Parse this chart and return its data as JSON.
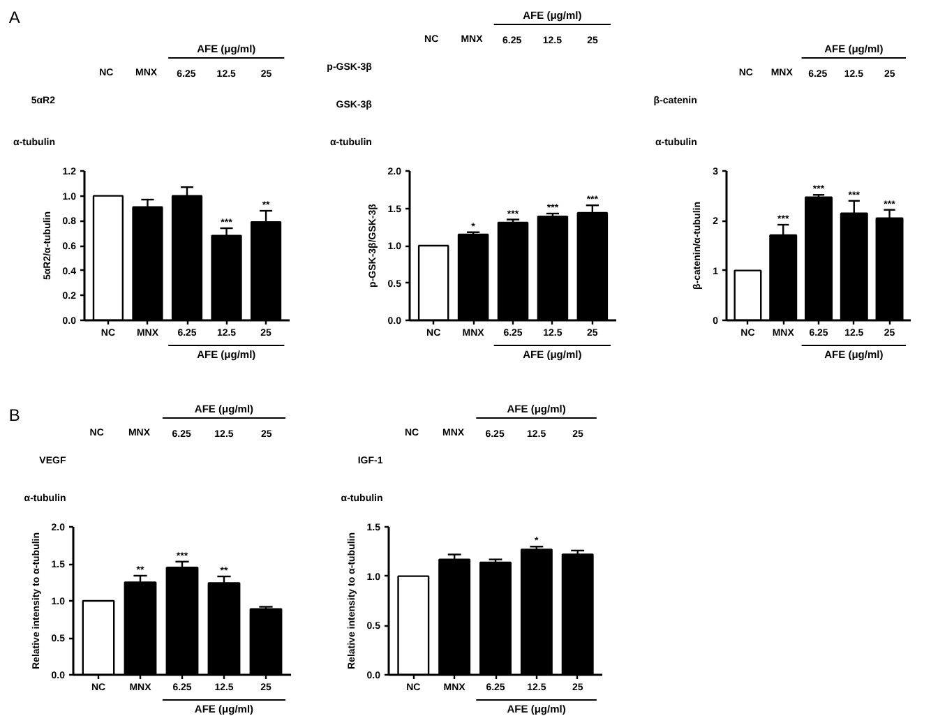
{
  "chart_data": [
    {
      "type": "bar",
      "title": "A",
      "categories": [
        "NC",
        "MNX",
        "6.25",
        "12.5",
        "25"
      ],
      "values": [
        1.0,
        0.91,
        1.0,
        0.68,
        0.79
      ],
      "errors": [
        null,
        0.06,
        0.07,
        0.06,
        0.09
      ],
      "colors": [
        "#ffffff",
        "#000000",
        "#000000",
        "#000000",
        "#000000"
      ],
      "ylabel": "5αR2/α-tubulin",
      "xlabel": "AFE (μg/ml)",
      "ylim": [
        0,
        1.2
      ],
      "yticks": [
        {
          "value": 0,
          "label": "0.0"
        },
        0.2,
        0.4,
        0.6,
        0.8,
        {
          "value": 1,
          "label": "1.0"
        },
        1.2
      ],
      "annotations": [
        "5αR2",
        "α-tubulin",
        {
          "text": "***",
          "x": "12.5",
          "y": 0.74
        },
        {
          "text": "**",
          "x": "25",
          "y": 0.88
        }
      ]
    },
    {
      "type": "bar",
      "categories": [
        "NC",
        "MNX",
        "6.25",
        "12.5",
        "25"
      ],
      "values": [
        1.0,
        1.15,
        1.31,
        1.39,
        1.44
      ],
      "errors": [
        null,
        0.03,
        0.04,
        0.04,
        0.1
      ],
      "colors": [
        "#ffffff",
        "#000000",
        "#000000",
        "#000000",
        "#000000"
      ],
      "ylabel": "p-GSK-3β/GSK-3β",
      "xlabel": "AFE (μg/ml)",
      "ylim": [
        0,
        2
      ],
      "yticks": [
        {
          "value": 0,
          "label": "0.0"
        },
        0.5,
        {
          "value": 1,
          "label": "1.0"
        },
        1.5,
        {
          "value": 2,
          "label": "2.0"
        }
      ],
      "annotations": [
        "p-GSK-3β",
        "GSK-3β",
        "α-tubulin",
        {
          "text": "*",
          "x": "MNX",
          "y": 1.18
        },
        {
          "text": "***",
          "x": "6.25",
          "y": 1.35
        },
        {
          "text": "***",
          "x": "12.5",
          "y": 1.43
        },
        {
          "text": "***",
          "x": "25",
          "y": 1.54
        }
      ]
    },
    {
      "type": "bar",
      "categories": [
        "NC",
        "MNX",
        "6.25",
        "12.5",
        "25"
      ],
      "values": [
        1.0,
        1.71,
        2.47,
        2.15,
        2.05
      ],
      "errors": [
        null,
        0.21,
        0.05,
        0.25,
        0.17
      ],
      "colors": [
        "#ffffff",
        "#000000",
        "#000000",
        "#000000",
        "#000000"
      ],
      "ylabel": "β-catenin/α-tubulin",
      "xlabel": "AFE (μg/ml)",
      "ylim": [
        0,
        3
      ],
      "yticks": [
        0,
        1,
        2,
        3
      ],
      "annotations": [
        "β-catenin",
        "α-tubulin",
        {
          "text": "***",
          "x": "MNX",
          "y": 1.92
        },
        {
          "text": "***",
          "x": "6.25",
          "y": 2.52
        },
        {
          "text": "***",
          "x": "12.5",
          "y": 2.4
        },
        {
          "text": "***",
          "x": "25",
          "y": 2.22
        }
      ]
    },
    {
      "type": "bar",
      "title": "B",
      "categories": [
        "NC",
        "MNX",
        "6.25",
        "12.5",
        "25"
      ],
      "values": [
        1.0,
        1.25,
        1.45,
        1.24,
        0.89
      ],
      "errors": [
        null,
        0.09,
        0.08,
        0.09,
        0.03
      ],
      "colors": [
        "#ffffff",
        "#000000",
        "#000000",
        "#000000",
        "#000000"
      ],
      "ylabel": "Relative intensity to α-tubulin",
      "xlabel": "AFE (μg/ml)",
      "ylim": [
        0,
        2
      ],
      "yticks": [
        {
          "value": 0,
          "label": "0.0"
        },
        0.5,
        {
          "value": 1,
          "label": "1.0"
        },
        1.5,
        {
          "value": 2,
          "label": "2.0"
        }
      ],
      "annotations": [
        "VEGF",
        "α-tubulin",
        {
          "text": "**",
          "x": "MNX",
          "y": 1.34
        },
        {
          "text": "***",
          "x": "6.25",
          "y": 1.53
        },
        {
          "text": "**",
          "x": "12.5",
          "y": 1.33
        }
      ]
    },
    {
      "type": "bar",
      "categories": [
        "NC",
        "MNX",
        "6.25",
        "12.5",
        "25"
      ],
      "values": [
        1.0,
        1.17,
        1.14,
        1.27,
        1.22
      ],
      "errors": [
        null,
        0.05,
        0.03,
        0.03,
        0.04
      ],
      "colors": [
        "#ffffff",
        "#000000",
        "#000000",
        "#000000",
        "#000000"
      ],
      "ylabel": "Relative intensity to α-tubulin",
      "xlabel": "AFE (μg/ml)",
      "ylim": [
        0,
        1.5
      ],
      "yticks": [
        {
          "value": 0,
          "label": "0.0"
        },
        0.5,
        {
          "value": 1,
          "label": "1.0"
        },
        1.5
      ],
      "annotations": [
        "IGF-1",
        "α-tubulin",
        {
          "text": "*",
          "x": "12.5",
          "y": 1.3
        }
      ]
    }
  ]
}
